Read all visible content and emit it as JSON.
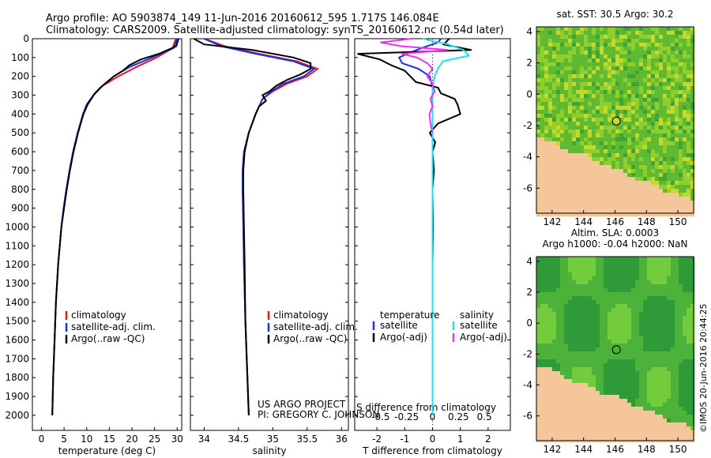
{
  "header": {
    "line1": "Argo profile: AO 5903874_149 11-Jun-2016 20160612_595 1.717S 146.084E",
    "line2": "Climatology: CARS2009. Satellite-adjusted climatology: synTS_20160612.nc (0.54d later)"
  },
  "colors": {
    "climatology": "#e8141b",
    "satellite": "#1631e6",
    "argo": "#000000",
    "satellite_salt": "#22e0e8",
    "argo_salt": "#f02cf0",
    "land": "#f5c69a",
    "sea_low": "#1e8c2e",
    "sea_high": "#d7dd2a"
  },
  "chart_data": [
    {
      "type": "line",
      "id": "temperature",
      "xlabel": "temperature (deg C)",
      "ylabel": "",
      "xlim": [
        -2,
        31
      ],
      "ylim": [
        2080,
        0
      ],
      "xticks": [
        0,
        5,
        10,
        15,
        20,
        25,
        30
      ],
      "yticks": [
        0,
        100,
        200,
        300,
        400,
        500,
        600,
        700,
        800,
        900,
        1000,
        1100,
        1200,
        1300,
        1400,
        1500,
        1600,
        1700,
        1800,
        1900,
        2000
      ],
      "legend": [
        "climatology",
        "satellite-adj. clim.",
        "Argo(..raw -QC)"
      ],
      "series": [
        {
          "name": "climatology",
          "color": "climatology",
          "depth": [
            0,
            50,
            100,
            150,
            200,
            250,
            300,
            350,
            400,
            500,
            600,
            700,
            800,
            900,
            1000,
            1200,
            1400,
            1600,
            1800,
            2000
          ],
          "values": [
            29.7,
            29.0,
            25.5,
            21.0,
            17.0,
            13.5,
            11.5,
            10.0,
            9.2,
            8.0,
            7.0,
            6.2,
            5.5,
            4.9,
            4.4,
            3.7,
            3.2,
            2.9,
            2.6,
            2.4
          ]
        },
        {
          "name": "satellite",
          "color": "satellite",
          "depth": [
            0,
            50,
            100,
            150,
            200,
            250,
            300,
            350,
            400,
            500,
            600,
            700,
            800,
            900,
            1000,
            1200,
            1400,
            1600,
            1800,
            2000
          ],
          "values": [
            30.0,
            29.2,
            24.5,
            19.5,
            16.0,
            13.5,
            11.5,
            10.0,
            9.2,
            8.0,
            7.0,
            6.2,
            5.5,
            4.9,
            4.4,
            3.7,
            3.2,
            2.9,
            2.6,
            2.4
          ]
        },
        {
          "name": "argo",
          "color": "argo",
          "depth": [
            0,
            40,
            80,
            110,
            140,
            170,
            200,
            230,
            260,
            290,
            320,
            350,
            400,
            500,
            600,
            700,
            800,
            900,
            1000,
            1200,
            1400,
            1600,
            1800,
            2000
          ],
          "values": [
            30.3,
            29.8,
            26.0,
            22.0,
            19.5,
            18.0,
            16.0,
            14.5,
            13.0,
            11.8,
            11.0,
            10.2,
            9.3,
            8.1,
            7.1,
            6.3,
            5.6,
            5.0,
            4.4,
            3.7,
            3.2,
            2.9,
            2.6,
            2.4
          ]
        }
      ]
    },
    {
      "type": "line",
      "id": "salinity",
      "xlabel": "salinity",
      "xlim": [
        33.8,
        36.1
      ],
      "ylim": [
        2080,
        0
      ],
      "xticks": [
        34,
        34.5,
        35,
        35.5,
        36
      ],
      "legend": [
        "climatology",
        "satellite-adj. clim.",
        "Argo(..raw -QC)"
      ],
      "series": [
        {
          "name": "climatology",
          "color": "climatology",
          "depth": [
            0,
            40,
            80,
            120,
            160,
            200,
            240,
            280,
            320,
            360,
            400,
            500,
            600,
            700,
            800,
            1000,
            1200,
            1500,
            1800,
            2000
          ],
          "values": [
            34.0,
            34.3,
            34.8,
            35.35,
            35.65,
            35.5,
            35.2,
            35.0,
            34.85,
            34.8,
            34.75,
            34.65,
            34.58,
            34.56,
            34.56,
            34.57,
            34.58,
            34.6,
            34.63,
            34.65
          ]
        },
        {
          "name": "satellite",
          "color": "satellite",
          "depth": [
            0,
            40,
            80,
            120,
            160,
            200,
            240,
            280,
            320,
            360,
            400,
            500,
            600,
            700,
            800,
            1000,
            1200,
            1500,
            1800,
            2000
          ],
          "values": [
            34.0,
            34.25,
            34.75,
            35.3,
            35.6,
            35.45,
            35.15,
            34.98,
            34.85,
            34.8,
            34.75,
            34.65,
            34.58,
            34.56,
            34.56,
            34.57,
            34.58,
            34.6,
            34.63,
            34.65
          ]
        },
        {
          "name": "argo",
          "color": "argo",
          "depth": [
            0,
            30,
            60,
            100,
            130,
            160,
            190,
            220,
            250,
            280,
            300,
            330,
            360,
            400,
            450,
            500,
            600,
            700,
            800,
            1000,
            1200,
            1500,
            1800,
            2000
          ],
          "values": [
            33.85,
            34.0,
            34.7,
            35.3,
            35.55,
            35.55,
            35.4,
            35.2,
            35.05,
            34.95,
            34.85,
            34.9,
            34.8,
            34.75,
            34.7,
            34.65,
            34.59,
            34.57,
            34.57,
            34.58,
            34.59,
            34.6,
            34.63,
            34.65
          ]
        }
      ]
    },
    {
      "type": "line",
      "id": "difference",
      "xlabel": "T difference from climatology",
      "xlabel2": "S difference from climatology",
      "xlim": [
        -2.8,
        2.8
      ],
      "ylim": [
        2080,
        0
      ],
      "xticks": [
        -2,
        -1,
        0,
        1,
        2
      ],
      "xticks_salt": [
        -0.5,
        -0.25,
        0,
        0.25,
        0.5
      ],
      "xticklabels_salt": [
        "-0.5",
        "-0.25",
        "0",
        "0.25",
        "0.5"
      ],
      "legend_temperature": {
        "title": "temperature",
        "items": [
          "satellite",
          "Argo(-adj)"
        ]
      },
      "legend_salinity": {
        "title": "salinity",
        "items": [
          "satellite",
          "Argo(-adj)"
        ]
      },
      "series": [
        {
          "name": "temperature satellite",
          "color": "satellite",
          "depth": [
            0,
            20,
            50,
            80,
            100,
            130,
            160,
            200,
            260,
            320,
            400,
            500,
            600,
            800,
            1000,
            1400,
            2000
          ],
          "values": [
            0.3,
            0.2,
            -0.4,
            -0.9,
            -1.2,
            -1.1,
            -0.5,
            -0.1,
            0.0,
            0.0,
            0.0,
            0.0,
            0.0,
            0.0,
            0.0,
            0.0,
            0.0
          ]
        },
        {
          "name": "temperature argo",
          "color": "argo",
          "depth": [
            0,
            30,
            60,
            80,
            110,
            140,
            170,
            200,
            230,
            260,
            290,
            320,
            350,
            400,
            450,
            500,
            550,
            600,
            700,
            800,
            1000,
            1200,
            1500,
            1800,
            2000
          ],
          "values": [
            0.6,
            0.4,
            1.4,
            -2.7,
            -1.9,
            -1.5,
            -1.0,
            -0.8,
            -0.6,
            0.2,
            0.3,
            0.8,
            0.9,
            1.0,
            0.2,
            -0.1,
            0.1,
            0.0,
            0.05,
            0.0,
            0.02,
            0.0,
            0.0,
            0.0,
            0.0
          ]
        },
        {
          "name": "salinity satellite",
          "color": "satellite_salt",
          "depth": [
            0,
            30,
            60,
            90,
            120,
            160,
            200,
            260,
            320,
            400,
            500,
            600,
            800,
            1000,
            1400,
            2000
          ],
          "values": [
            -0.1,
            0.15,
            0.3,
            0.35,
            0.1,
            0.05,
            0.02,
            0.0,
            0.0,
            0.0,
            0.0,
            0.0,
            0.0,
            0.0,
            0.0,
            0.0
          ]
        },
        {
          "name": "salinity argo",
          "color": "argo_salt",
          "depth": [
            0,
            20,
            40,
            60,
            80,
            100,
            130,
            160,
            200,
            240,
            280,
            320,
            360,
            400,
            450,
            500
          ],
          "values": [
            -0.2,
            -0.5,
            -0.3,
            0.15,
            -0.3,
            -0.15,
            -0.05,
            0.0,
            -0.05,
            0.0,
            0.02,
            -0.02,
            0.0,
            -0.03,
            -0.02,
            0.0
          ]
        }
      ]
    },
    {
      "type": "heatmap",
      "id": "sst_map",
      "title": "sat. SST: 30.5 Argo: 30.2",
      "xlim": [
        141,
        151
      ],
      "ylim": [
        -7.6,
        4.3
      ],
      "xticks": [
        142,
        144,
        146,
        148,
        150
      ],
      "yticks": [
        4,
        2,
        0,
        -2,
        -4,
        -6
      ],
      "float_position": {
        "lon": 146.084,
        "lat": -1.717
      }
    },
    {
      "type": "heatmap",
      "id": "sla_map",
      "title": "Altim. SLA: 0.0003",
      "subtitle": "Argo h1000: -0.04 h2000: NaN",
      "xlim": [
        141,
        151
      ],
      "ylim": [
        -7.6,
        4.3
      ],
      "xticks": [
        142,
        144,
        146,
        148,
        150
      ],
      "yticks": [
        4,
        2,
        0,
        -2,
        -4,
        -6
      ],
      "float_position": {
        "lon": 146.084,
        "lat": -1.717
      }
    }
  ],
  "credits": {
    "project": "US ARGO PROJECT",
    "pi": "PI: GREGORY C. JOHNSON",
    "stamp": "©IMOS 20-Jun-2016 20:44:25"
  }
}
